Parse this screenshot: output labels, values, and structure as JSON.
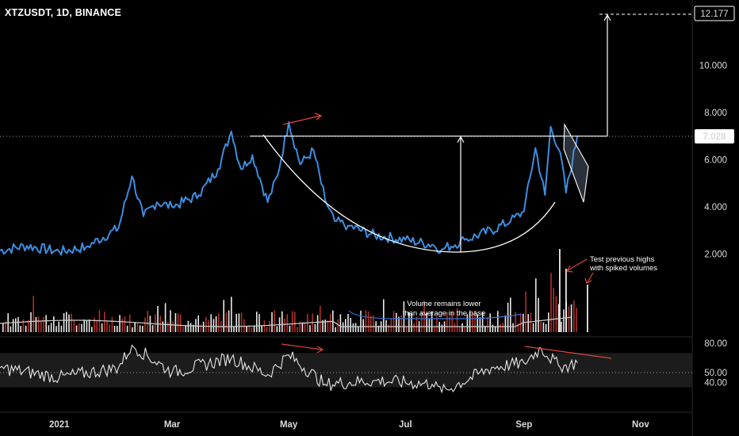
{
  "header": {
    "symbol_label": "XTZUSDT, 1D, BINANCE"
  },
  "colors": {
    "price_line": "#3d8ee0",
    "annotation_white": "#ffffff",
    "annotation_red": "#e0463c",
    "annotation_blue": "#3d6fd6",
    "volume_up": "#e8e8e8",
    "volume_down": "#b0302a",
    "rsi_band": "#1c1c1c",
    "price_label_bg": "#ffffff",
    "price_label_text": "#000000"
  },
  "chart_data": [
    {
      "type": "line",
      "panel": "price",
      "series": [
        {
          "x": [
            "2020-12-01",
            "2020-12-15",
            "2021-01-01",
            "2021-01-15",
            "2021-02-01",
            "2021-02-08",
            "2021-02-14",
            "2021-02-21",
            "2021-03-01",
            "2021-03-15",
            "2021-03-25",
            "2021-04-01",
            "2021-04-06",
            "2021-04-12",
            "2021-04-20",
            "2021-04-25",
            "2021-05-01",
            "2021-05-07",
            "2021-05-14",
            "2021-05-20",
            "2021-05-25",
            "2021-06-01",
            "2021-06-15",
            "2021-07-01",
            "2021-07-15",
            "2021-07-20",
            "2021-08-01",
            "2021-08-15",
            "2021-08-25",
            "2021-09-01",
            "2021-09-07",
            "2021-09-12",
            "2021-09-15",
            "2021-09-20",
            "2021-09-23",
            "2021-09-29"
          ],
          "values": [
            2.15,
            2.35,
            2.1,
            2.3,
            3.1,
            5.3,
            3.6,
            4.2,
            4.0,
            4.5,
            5.6,
            7.2,
            5.6,
            6.2,
            4.2,
            5.3,
            7.6,
            5.8,
            6.4,
            4.3,
            3.4,
            3.2,
            2.8,
            2.6,
            2.4,
            2.2,
            2.6,
            3.0,
            3.4,
            3.8,
            6.5,
            4.5,
            7.4,
            6.3,
            4.6,
            7.028
          ]
        }
      ],
      "yticks": [
        "2.000",
        "4.000",
        "6.000",
        "8.000",
        "10.000"
      ],
      "ylim": [
        -1.0,
        12.6
      ],
      "current_price_label": "7.028",
      "target_price_label": "12.177"
    },
    {
      "type": "bar",
      "panel": "volume",
      "annotation_lines": [
        "Volume remains lower",
        "than average in the base"
      ],
      "spike_annotation_lines": [
        "Test previous highs",
        "with spiked volumes"
      ]
    },
    {
      "type": "line",
      "panel": "rsi",
      "series": [
        {
          "x": [
            "2020-12-01",
            "2021-01-01",
            "2021-02-01",
            "2021-02-08",
            "2021-03-01",
            "2021-04-01",
            "2021-04-20",
            "2021-05-01",
            "2021-05-20",
            "2021-06-15",
            "2021-07-15",
            "2021-07-20",
            "2021-08-15",
            "2021-09-01",
            "2021-09-10",
            "2021-09-20",
            "2021-09-29"
          ],
          "values": [
            55,
            45,
            55,
            78,
            50,
            65,
            48,
            68,
            38,
            42,
            38,
            30,
            55,
            60,
            75,
            55,
            60
          ]
        }
      ],
      "yticks": [
        "80.00",
        "50.00",
        "40.00"
      ],
      "band": [
        35,
        70
      ]
    }
  ],
  "xaxis": {
    "tick_labels": [
      "2021",
      "Mar",
      "May",
      "Jul",
      "Sep",
      "Nov"
    ]
  }
}
